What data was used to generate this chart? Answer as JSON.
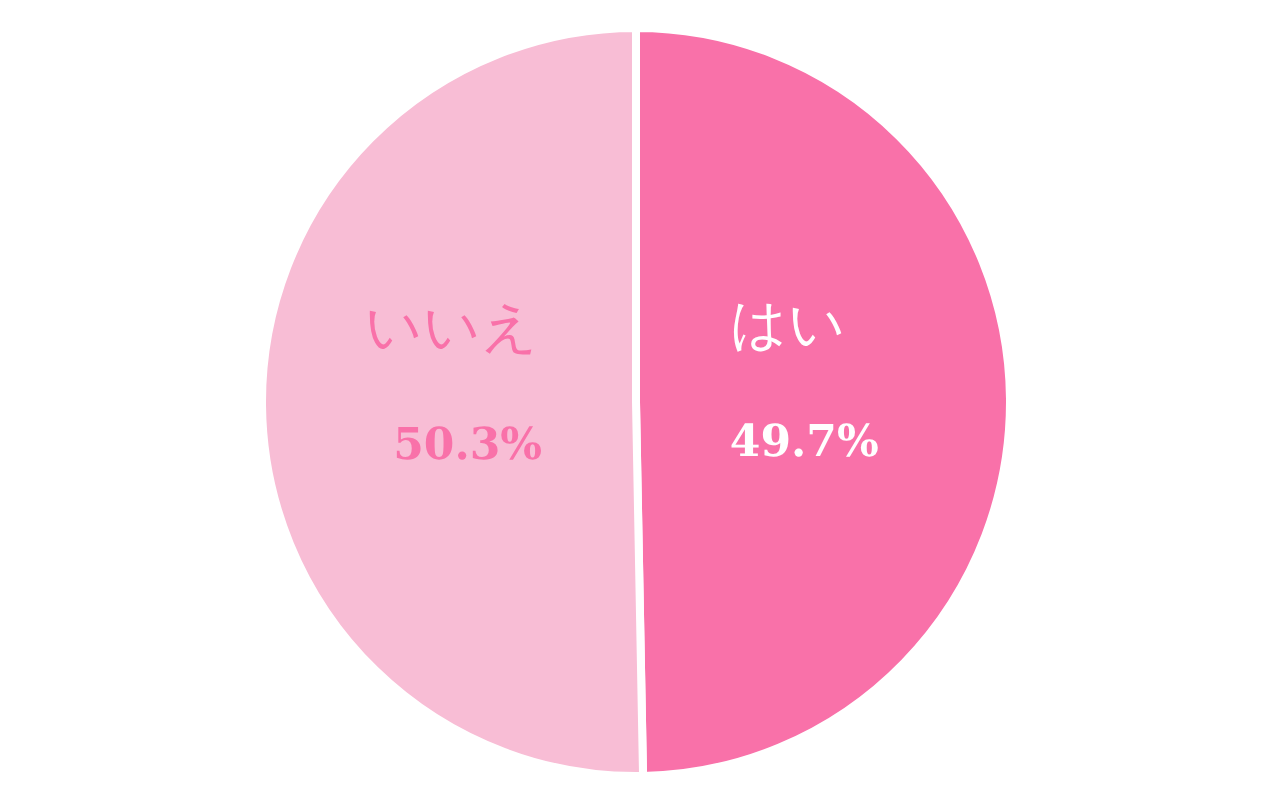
{
  "chart_data": {
    "type": "pie",
    "categories": [
      "はい",
      "いいえ"
    ],
    "values": [
      49.7,
      50.3
    ],
    "colors": [
      "#f971a9",
      "#f8bdd5"
    ],
    "value_labels": [
      "49.7%",
      "50.3%"
    ]
  }
}
